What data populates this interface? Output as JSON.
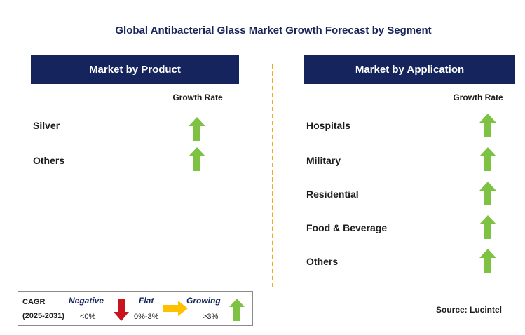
{
  "title": "Global Antibacterial Glass Market Growth Forecast by Segment",
  "colors": {
    "header_bg": "#15245c",
    "growing": "#7dc242",
    "negative": "#c8141e",
    "flat": "#ffc000",
    "divider": "#f5a623"
  },
  "product": {
    "header": "Market by Product",
    "growth_label": "Growth Rate",
    "rows": [
      {
        "label": "Silver",
        "trend": "growing",
        "icon": "up-arrow-icon"
      },
      {
        "label": "Others",
        "trend": "growing",
        "icon": "up-arrow-icon"
      }
    ]
  },
  "application": {
    "header": "Market by Application",
    "growth_label": "Growth Rate",
    "rows": [
      {
        "label": "Hospitals",
        "trend": "growing",
        "icon": "up-arrow-icon"
      },
      {
        "label": "Military",
        "trend": "growing",
        "icon": "up-arrow-icon"
      },
      {
        "label": "Residential",
        "trend": "growing",
        "icon": "up-arrow-icon"
      },
      {
        "label": "Food & Beverage",
        "trend": "growing",
        "icon": "up-arrow-icon"
      },
      {
        "label": "Others",
        "trend": "growing",
        "icon": "up-arrow-icon"
      }
    ]
  },
  "legend": {
    "cagr": "CAGR",
    "period": "(2025-2031)",
    "negative": {
      "label": "Negative",
      "range": "<0%",
      "icon": "down-arrow-icon"
    },
    "flat": {
      "label": "Flat",
      "range": "0%-3%",
      "icon": "right-arrow-icon"
    },
    "growing": {
      "label": "Growing",
      "range": ">3%",
      "icon": "up-arrow-icon"
    }
  },
  "source": "Source: Lucintel"
}
